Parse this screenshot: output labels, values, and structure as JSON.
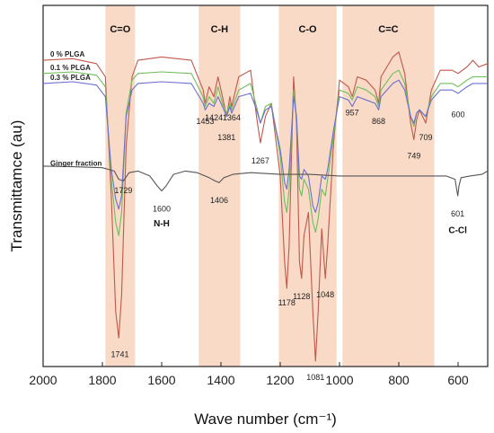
{
  "chart_data": {
    "type": "line",
    "title": "",
    "xlabel": "Wave number (cm⁻¹)",
    "ylabel": "Transmittamce (au)",
    "xlim": [
      2000,
      500
    ],
    "x_reversed": true,
    "xticks": [
      "2000",
      "1800",
      "1600",
      "1400",
      "1200",
      "1000",
      "800",
      "600"
    ],
    "xtick_values": [
      2000,
      1800,
      1600,
      1400,
      1200,
      1000,
      800,
      600
    ],
    "y_unit": "arbitrary",
    "highlight_bands": [
      {
        "label": "C=O",
        "from": 1790,
        "to": 1690
      },
      {
        "label": "C-H",
        "from": 1475,
        "to": 1335
      },
      {
        "label": "C-O",
        "from": 1205,
        "to": 1010
      },
      {
        "label": "C=C",
        "from": 990,
        "to": 680
      }
    ],
    "series": [
      {
        "name": "0 % PLGA",
        "color": "#c0584a",
        "label_at": [
          2000,
          0.91
        ],
        "points": [
          [
            2000,
            0.91
          ],
          [
            1900,
            0.915
          ],
          [
            1820,
            0.9
          ],
          [
            1790,
            0.86
          ],
          [
            1770,
            0.5
          ],
          [
            1755,
            0.15
          ],
          [
            1745,
            0.07
          ],
          [
            1735,
            0.2
          ],
          [
            1720,
            0.65
          ],
          [
            1700,
            0.86
          ],
          [
            1680,
            0.91
          ],
          [
            1600,
            0.92
          ],
          [
            1500,
            0.91
          ],
          [
            1460,
            0.82
          ],
          [
            1453,
            0.78
          ],
          [
            1440,
            0.83
          ],
          [
            1424,
            0.8
          ],
          [
            1410,
            0.86
          ],
          [
            1395,
            0.8
          ],
          [
            1381,
            0.74
          ],
          [
            1370,
            0.8
          ],
          [
            1364,
            0.77
          ],
          [
            1340,
            0.86
          ],
          [
            1300,
            0.88
          ],
          [
            1280,
            0.74
          ],
          [
            1267,
            0.66
          ],
          [
            1250,
            0.74
          ],
          [
            1230,
            0.78
          ],
          [
            1200,
            0.56
          ],
          [
            1185,
            0.3
          ],
          [
            1178,
            0.22
          ],
          [
            1170,
            0.35
          ],
          [
            1155,
            0.86
          ],
          [
            1145,
            0.72
          ],
          [
            1135,
            0.3
          ],
          [
            1128,
            0.25
          ],
          [
            1120,
            0.38
          ],
          [
            1105,
            0.45
          ],
          [
            1090,
            0.15
          ],
          [
            1081,
            0.0
          ],
          [
            1072,
            0.15
          ],
          [
            1060,
            0.4
          ],
          [
            1048,
            0.25
          ],
          [
            1040,
            0.35
          ],
          [
            1020,
            0.66
          ],
          [
            1000,
            0.85
          ],
          [
            970,
            0.83
          ],
          [
            957,
            0.8
          ],
          [
            940,
            0.86
          ],
          [
            910,
            0.85
          ],
          [
            880,
            0.82
          ],
          [
            868,
            0.78
          ],
          [
            860,
            0.86
          ],
          [
            820,
            0.92
          ],
          [
            800,
            0.935
          ],
          [
            780,
            0.87
          ],
          [
            760,
            0.72
          ],
          [
            749,
            0.67
          ],
          [
            740,
            0.73
          ],
          [
            730,
            0.76
          ],
          [
            709,
            0.72
          ],
          [
            690,
            0.82
          ],
          [
            660,
            0.88
          ],
          [
            620,
            0.88
          ],
          [
            600,
            0.87
          ],
          [
            570,
            0.89
          ],
          [
            550,
            0.91
          ],
          [
            530,
            0.89
          ],
          [
            500,
            0.9
          ]
        ]
      },
      {
        "name": "0.1 % PLGA",
        "color": "#6fbe5a",
        "label_at": [
          2000,
          0.87
        ],
        "points": [
          [
            2000,
            0.87
          ],
          [
            1900,
            0.875
          ],
          [
            1820,
            0.865
          ],
          [
            1790,
            0.83
          ],
          [
            1770,
            0.55
          ],
          [
            1755,
            0.42
          ],
          [
            1745,
            0.38
          ],
          [
            1735,
            0.45
          ],
          [
            1720,
            0.75
          ],
          [
            1700,
            0.85
          ],
          [
            1680,
            0.87
          ],
          [
            1600,
            0.875
          ],
          [
            1500,
            0.87
          ],
          [
            1460,
            0.8
          ],
          [
            1453,
            0.77
          ],
          [
            1440,
            0.8
          ],
          [
            1424,
            0.78
          ],
          [
            1410,
            0.83
          ],
          [
            1395,
            0.78
          ],
          [
            1381,
            0.75
          ],
          [
            1370,
            0.78
          ],
          [
            1364,
            0.76
          ],
          [
            1340,
            0.82
          ],
          [
            1300,
            0.84
          ],
          [
            1280,
            0.77
          ],
          [
            1267,
            0.72
          ],
          [
            1250,
            0.77
          ],
          [
            1230,
            0.78
          ],
          [
            1200,
            0.62
          ],
          [
            1185,
            0.48
          ],
          [
            1178,
            0.45
          ],
          [
            1170,
            0.52
          ],
          [
            1155,
            0.82
          ],
          [
            1145,
            0.74
          ],
          [
            1135,
            0.52
          ],
          [
            1128,
            0.5
          ],
          [
            1120,
            0.55
          ],
          [
            1105,
            0.52
          ],
          [
            1090,
            0.42
          ],
          [
            1081,
            0.39
          ],
          [
            1072,
            0.43
          ],
          [
            1060,
            0.52
          ],
          [
            1048,
            0.5
          ],
          [
            1040,
            0.55
          ],
          [
            1020,
            0.68
          ],
          [
            1000,
            0.82
          ],
          [
            970,
            0.81
          ],
          [
            957,
            0.79
          ],
          [
            940,
            0.83
          ],
          [
            910,
            0.82
          ],
          [
            880,
            0.8
          ],
          [
            868,
            0.77
          ],
          [
            860,
            0.82
          ],
          [
            820,
            0.87
          ],
          [
            800,
            0.88
          ],
          [
            780,
            0.84
          ],
          [
            760,
            0.74
          ],
          [
            749,
            0.71
          ],
          [
            740,
            0.75
          ],
          [
            730,
            0.76
          ],
          [
            709,
            0.74
          ],
          [
            690,
            0.8
          ],
          [
            660,
            0.84
          ],
          [
            620,
            0.84
          ],
          [
            600,
            0.83
          ],
          [
            570,
            0.85
          ],
          [
            550,
            0.86
          ],
          [
            530,
            0.86
          ],
          [
            500,
            0.86
          ]
        ]
      },
      {
        "name": "0.3 % PLGA",
        "color": "#6a6fd0",
        "label_at": [
          2000,
          0.84
        ],
        "points": [
          [
            2000,
            0.84
          ],
          [
            1900,
            0.845
          ],
          [
            1820,
            0.835
          ],
          [
            1790,
            0.8
          ],
          [
            1770,
            0.58
          ],
          [
            1755,
            0.49
          ],
          [
            1745,
            0.46
          ],
          [
            1735,
            0.5
          ],
          [
            1720,
            0.74
          ],
          [
            1700,
            0.82
          ],
          [
            1680,
            0.84
          ],
          [
            1600,
            0.845
          ],
          [
            1500,
            0.84
          ],
          [
            1460,
            0.78
          ],
          [
            1453,
            0.76
          ],
          [
            1440,
            0.78
          ],
          [
            1424,
            0.77
          ],
          [
            1410,
            0.8
          ],
          [
            1395,
            0.77
          ],
          [
            1381,
            0.74
          ],
          [
            1370,
            0.77
          ],
          [
            1364,
            0.75
          ],
          [
            1340,
            0.8
          ],
          [
            1300,
            0.81
          ],
          [
            1280,
            0.76
          ],
          [
            1267,
            0.72
          ],
          [
            1250,
            0.76
          ],
          [
            1230,
            0.77
          ],
          [
            1200,
            0.64
          ],
          [
            1185,
            0.54
          ],
          [
            1178,
            0.52
          ],
          [
            1170,
            0.58
          ],
          [
            1155,
            0.8
          ],
          [
            1145,
            0.74
          ],
          [
            1135,
            0.56
          ],
          [
            1128,
            0.55
          ],
          [
            1120,
            0.58
          ],
          [
            1105,
            0.56
          ],
          [
            1090,
            0.47
          ],
          [
            1081,
            0.45
          ],
          [
            1072,
            0.48
          ],
          [
            1060,
            0.56
          ],
          [
            1048,
            0.55
          ],
          [
            1040,
            0.58
          ],
          [
            1020,
            0.7
          ],
          [
            1000,
            0.8
          ],
          [
            970,
            0.79
          ],
          [
            957,
            0.77
          ],
          [
            940,
            0.8
          ],
          [
            910,
            0.79
          ],
          [
            880,
            0.78
          ],
          [
            868,
            0.76
          ],
          [
            860,
            0.8
          ],
          [
            820,
            0.84
          ],
          [
            800,
            0.85
          ],
          [
            780,
            0.82
          ],
          [
            760,
            0.74
          ],
          [
            749,
            0.72
          ],
          [
            740,
            0.75
          ],
          [
            730,
            0.76
          ],
          [
            709,
            0.74
          ],
          [
            690,
            0.79
          ],
          [
            660,
            0.82
          ],
          [
            620,
            0.82
          ],
          [
            600,
            0.81
          ],
          [
            570,
            0.83
          ],
          [
            550,
            0.84
          ],
          [
            530,
            0.84
          ],
          [
            500,
            0.84
          ]
        ]
      },
      {
        "name": "Ginger fraction",
        "color": "#555555",
        "label_at": [
          2000,
          0.58
        ],
        "points": [
          [
            2000,
            0.59
          ],
          [
            1900,
            0.588
          ],
          [
            1800,
            0.585
          ],
          [
            1760,
            0.575
          ],
          [
            1745,
            0.55
          ],
          [
            1729,
            0.545
          ],
          [
            1710,
            0.57
          ],
          [
            1680,
            0.575
          ],
          [
            1640,
            0.56
          ],
          [
            1615,
            0.53
          ],
          [
            1600,
            0.515
          ],
          [
            1585,
            0.53
          ],
          [
            1560,
            0.565
          ],
          [
            1520,
            0.575
          ],
          [
            1480,
            0.57
          ],
          [
            1440,
            0.555
          ],
          [
            1420,
            0.545
          ],
          [
            1406,
            0.54
          ],
          [
            1390,
            0.555
          ],
          [
            1360,
            0.565
          ],
          [
            1300,
            0.57
          ],
          [
            1200,
            0.565
          ],
          [
            1100,
            0.565
          ],
          [
            1000,
            0.56
          ],
          [
            900,
            0.56
          ],
          [
            800,
            0.56
          ],
          [
            700,
            0.56
          ],
          [
            640,
            0.56
          ],
          [
            610,
            0.55
          ],
          [
            605,
            0.52
          ],
          [
            601,
            0.5
          ],
          [
            597,
            0.53
          ],
          [
            590,
            0.555
          ],
          [
            560,
            0.56
          ],
          [
            520,
            0.565
          ],
          [
            500,
            0.575
          ]
        ]
      }
    ],
    "peak_labels": [
      {
        "text": "1741",
        "x": 1741,
        "y": 0.04
      },
      {
        "text": "1729",
        "x": 1729,
        "y": 0.535
      },
      {
        "text": "1600",
        "x": 1600,
        "y": 0.48
      },
      {
        "text": "1453",
        "x": 1453,
        "y": 0.745
      },
      {
        "text": "1424",
        "x": 1424,
        "y": 0.755
      },
      {
        "text": "1381",
        "x": 1381,
        "y": 0.695
      },
      {
        "text": "1364",
        "x": 1364,
        "y": 0.755
      },
      {
        "text": "1406",
        "x": 1406,
        "y": 0.505
      },
      {
        "text": "1267",
        "x": 1267,
        "y": 0.625
      },
      {
        "text": "1178",
        "x": 1178,
        "y": 0.195
      },
      {
        "text": "1128",
        "x": 1128,
        "y": 0.215
      },
      {
        "text": "1081",
        "x": 1081,
        "y": -0.03
      },
      {
        "text": "1048",
        "x": 1048,
        "y": 0.22
      },
      {
        "text": "957",
        "x": 957,
        "y": 0.77
      },
      {
        "text": "868",
        "x": 868,
        "y": 0.745
      },
      {
        "text": "749",
        "x": 749,
        "y": 0.64
      },
      {
        "text": "709",
        "x": 709,
        "y": 0.695
      },
      {
        "text": "600",
        "x": 600,
        "y": 0.765
      },
      {
        "text": "601",
        "x": 601,
        "y": 0.465
      }
    ],
    "group_labels": [
      {
        "text": "N-H",
        "x": 1600,
        "y": 0.44
      },
      {
        "text": "C-Cl",
        "x": 601,
        "y": 0.42
      }
    ]
  }
}
